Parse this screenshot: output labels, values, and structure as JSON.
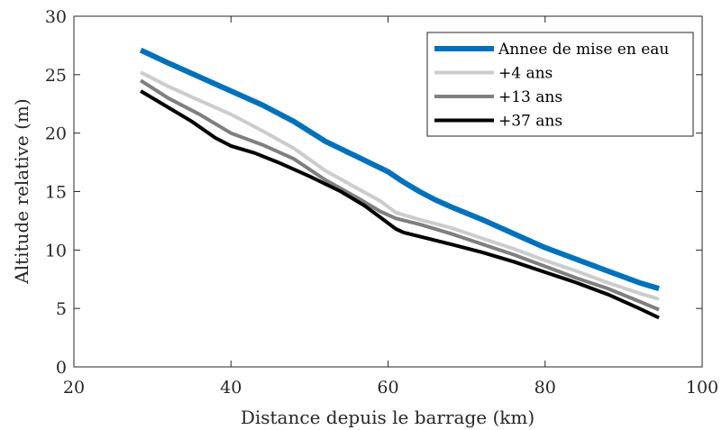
{
  "chart_data": {
    "type": "line",
    "xlabel": "Distance depuis le barrage (km)",
    "ylabel": "Altitude relative (m)",
    "xlim": [
      20,
      100
    ],
    "ylim": [
      0,
      30
    ],
    "xticks": [
      20,
      40,
      60,
      80,
      100
    ],
    "yticks": [
      0,
      5,
      10,
      15,
      20,
      25,
      30
    ],
    "grid": false,
    "legend_position": "top-right",
    "series": [
      {
        "name": "Annee de mise en eau",
        "color": "#0072BD",
        "x": [
          28.5,
          32,
          36,
          40,
          44,
          48,
          52,
          56,
          60,
          62,
          64,
          66,
          68,
          72,
          76,
          80,
          84,
          88,
          92,
          94.5
        ],
        "y": [
          27.1,
          26.0,
          24.8,
          23.6,
          22.4,
          21.0,
          19.3,
          18.0,
          16.7,
          15.8,
          15.0,
          14.3,
          13.7,
          12.6,
          11.4,
          10.2,
          9.2,
          8.2,
          7.2,
          6.7
        ]
      },
      {
        "name": "+4 ans",
        "color": "#cccccc",
        "x": [
          28.5,
          32,
          36,
          40,
          44,
          48,
          52,
          56,
          59,
          61,
          64,
          68,
          72,
          76,
          80,
          84,
          88,
          92,
          94.5
        ],
        "y": [
          25.2,
          24.0,
          22.8,
          21.6,
          20.2,
          18.7,
          16.8,
          15.3,
          14.2,
          13.2,
          12.6,
          11.9,
          11.0,
          10.1,
          9.1,
          8.2,
          7.2,
          6.3,
          5.8
        ]
      },
      {
        "name": "+13 ans",
        "color": "#7f7f7f",
        "x": [
          28.5,
          32,
          36,
          40,
          44,
          48,
          52,
          56,
          59,
          61,
          64,
          68,
          72,
          76,
          80,
          84,
          88,
          92,
          94.5
        ],
        "y": [
          24.5,
          23.0,
          21.6,
          20.0,
          19.0,
          17.8,
          16.0,
          14.5,
          13.3,
          12.7,
          12.2,
          11.4,
          10.5,
          9.6,
          8.6,
          7.6,
          6.7,
          5.6,
          4.9
        ]
      },
      {
        "name": "+37 ans",
        "color": "#000000",
        "x": [
          28.5,
          32,
          35,
          38,
          40,
          43,
          46,
          50,
          54,
          57,
          59,
          61,
          62,
          65,
          68,
          72,
          76,
          80,
          84,
          88,
          92,
          94.5
        ],
        "y": [
          23.6,
          22.2,
          21.0,
          19.6,
          18.9,
          18.3,
          17.5,
          16.3,
          15.0,
          13.8,
          12.8,
          11.8,
          11.5,
          11.0,
          10.5,
          9.8,
          9.0,
          8.1,
          7.2,
          6.2,
          5.0,
          4.2
        ]
      }
    ]
  }
}
